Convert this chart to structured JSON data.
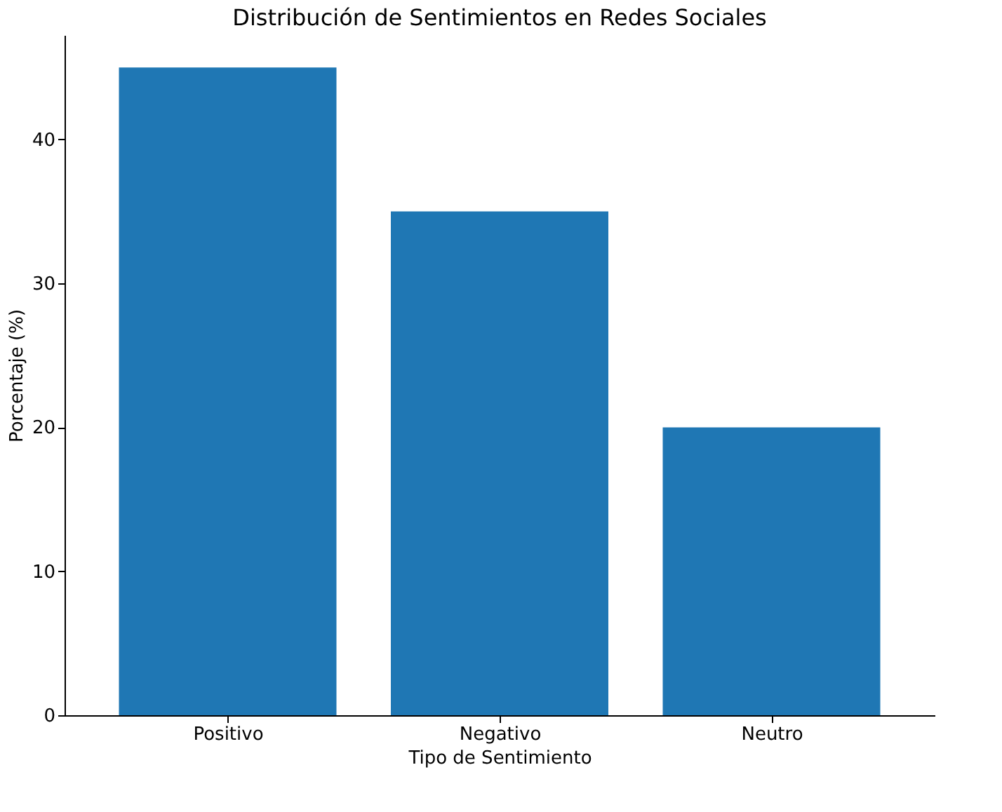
{
  "chart_data": {
    "type": "bar",
    "title": "Distribución de Sentimientos en Redes Sociales",
    "xlabel": "Tipo de Sentimiento",
    "ylabel": "Porcentaje (%)",
    "categories": [
      "Positivo",
      "Negativo",
      "Neutro"
    ],
    "values": [
      45,
      35,
      20
    ],
    "color": "#1f77b4",
    "ylim": [
      0,
      47.25
    ],
    "yticks": [
      0,
      10,
      20,
      30,
      40
    ],
    "grid": false
  }
}
